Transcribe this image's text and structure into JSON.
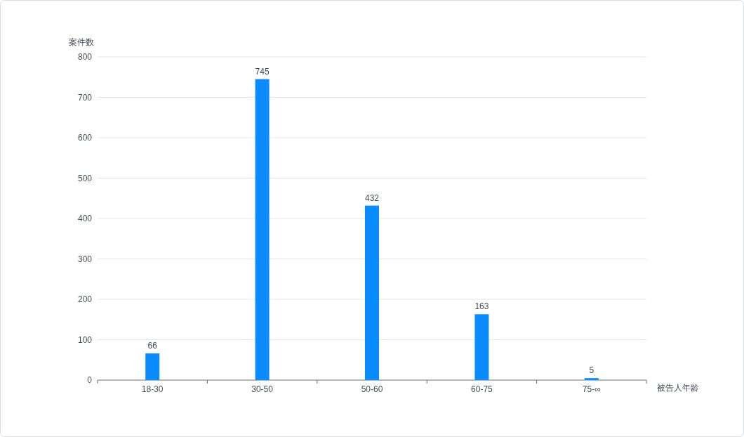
{
  "chart_data": {
    "type": "bar",
    "xlabel": "被告人年龄",
    "ylabel": "案件数",
    "categories": [
      "18-30",
      "30-50",
      "50-60",
      "60-75",
      "75-∞"
    ],
    "values": [
      66,
      745,
      432,
      163,
      5
    ],
    "color": "#0a8cff",
    "ylim": [
      0,
      800
    ],
    "yticks": [
      0,
      100,
      200,
      300,
      400,
      500,
      600,
      700,
      800
    ],
    "grid": "y",
    "data_labels": true
  }
}
